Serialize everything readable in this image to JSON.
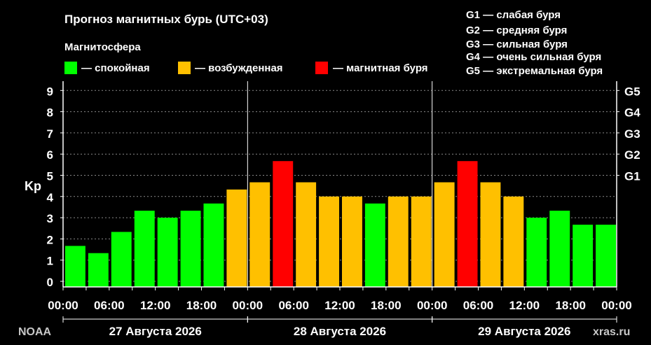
{
  "chart_data": {
    "type": "bar",
    "title": "Прогноз магнитных бурь (UTC+03)",
    "ylabel": "Kp",
    "ylim": [
      0,
      9.5
    ],
    "yticks": [
      0,
      1,
      2,
      3,
      4,
      5,
      6,
      7,
      8,
      9
    ],
    "grid": true,
    "legend": {
      "title": "Магнитосфера",
      "placement": "top-left",
      "items": [
        {
          "label": "— спокойная",
          "color": "#00ff00"
        },
        {
          "label": "— возбужденная",
          "color": "#ffc000"
        },
        {
          "label": "— магнитная буря",
          "color": "#ff0000"
        }
      ]
    },
    "storm_levels": {
      "labels": [
        "G1 — слабая буря",
        "G2 — средняя буря",
        "G3 — сильная буря",
        "G4 — очень сильная буря",
        "G5 — экстремальная буря"
      ],
      "ticks": [
        {
          "label": "G1",
          "kp": 5
        },
        {
          "label": "G2",
          "kp": 6
        },
        {
          "label": "G3",
          "kp": 7
        },
        {
          "label": "G4",
          "kp": 8
        },
        {
          "label": "G5",
          "kp": 9
        }
      ]
    },
    "x_tick_labels": [
      "00:00",
      "06:00",
      "12:00",
      "18:00",
      "00:00",
      "06:00",
      "12:00",
      "18:00",
      "00:00",
      "06:00",
      "12:00",
      "18:00",
      "00:00"
    ],
    "days": [
      "27 Августа 2026",
      "28 Августа 2026",
      "29 Августа 2026"
    ],
    "bar_hours": [
      "00:00",
      "03:00",
      "06:00",
      "09:00",
      "12:00",
      "15:00",
      "18:00",
      "21:00"
    ],
    "series": [
      {
        "values": [
          1.67,
          1.33,
          2.33,
          3.33,
          3.0,
          3.33,
          3.67,
          4.33,
          4.67,
          5.67,
          4.67,
          4.0,
          4.0,
          3.67,
          4.0,
          4.0,
          4.67,
          5.67,
          4.67,
          4.0,
          3.0,
          3.33,
          2.67,
          2.67
        ]
      }
    ],
    "colors": {
      "quiet": "#00ff00",
      "active": "#ffc000",
      "storm": "#ff0000"
    }
  },
  "footer": {
    "source_left": "NOAA",
    "source_right": "xras.ru"
  }
}
